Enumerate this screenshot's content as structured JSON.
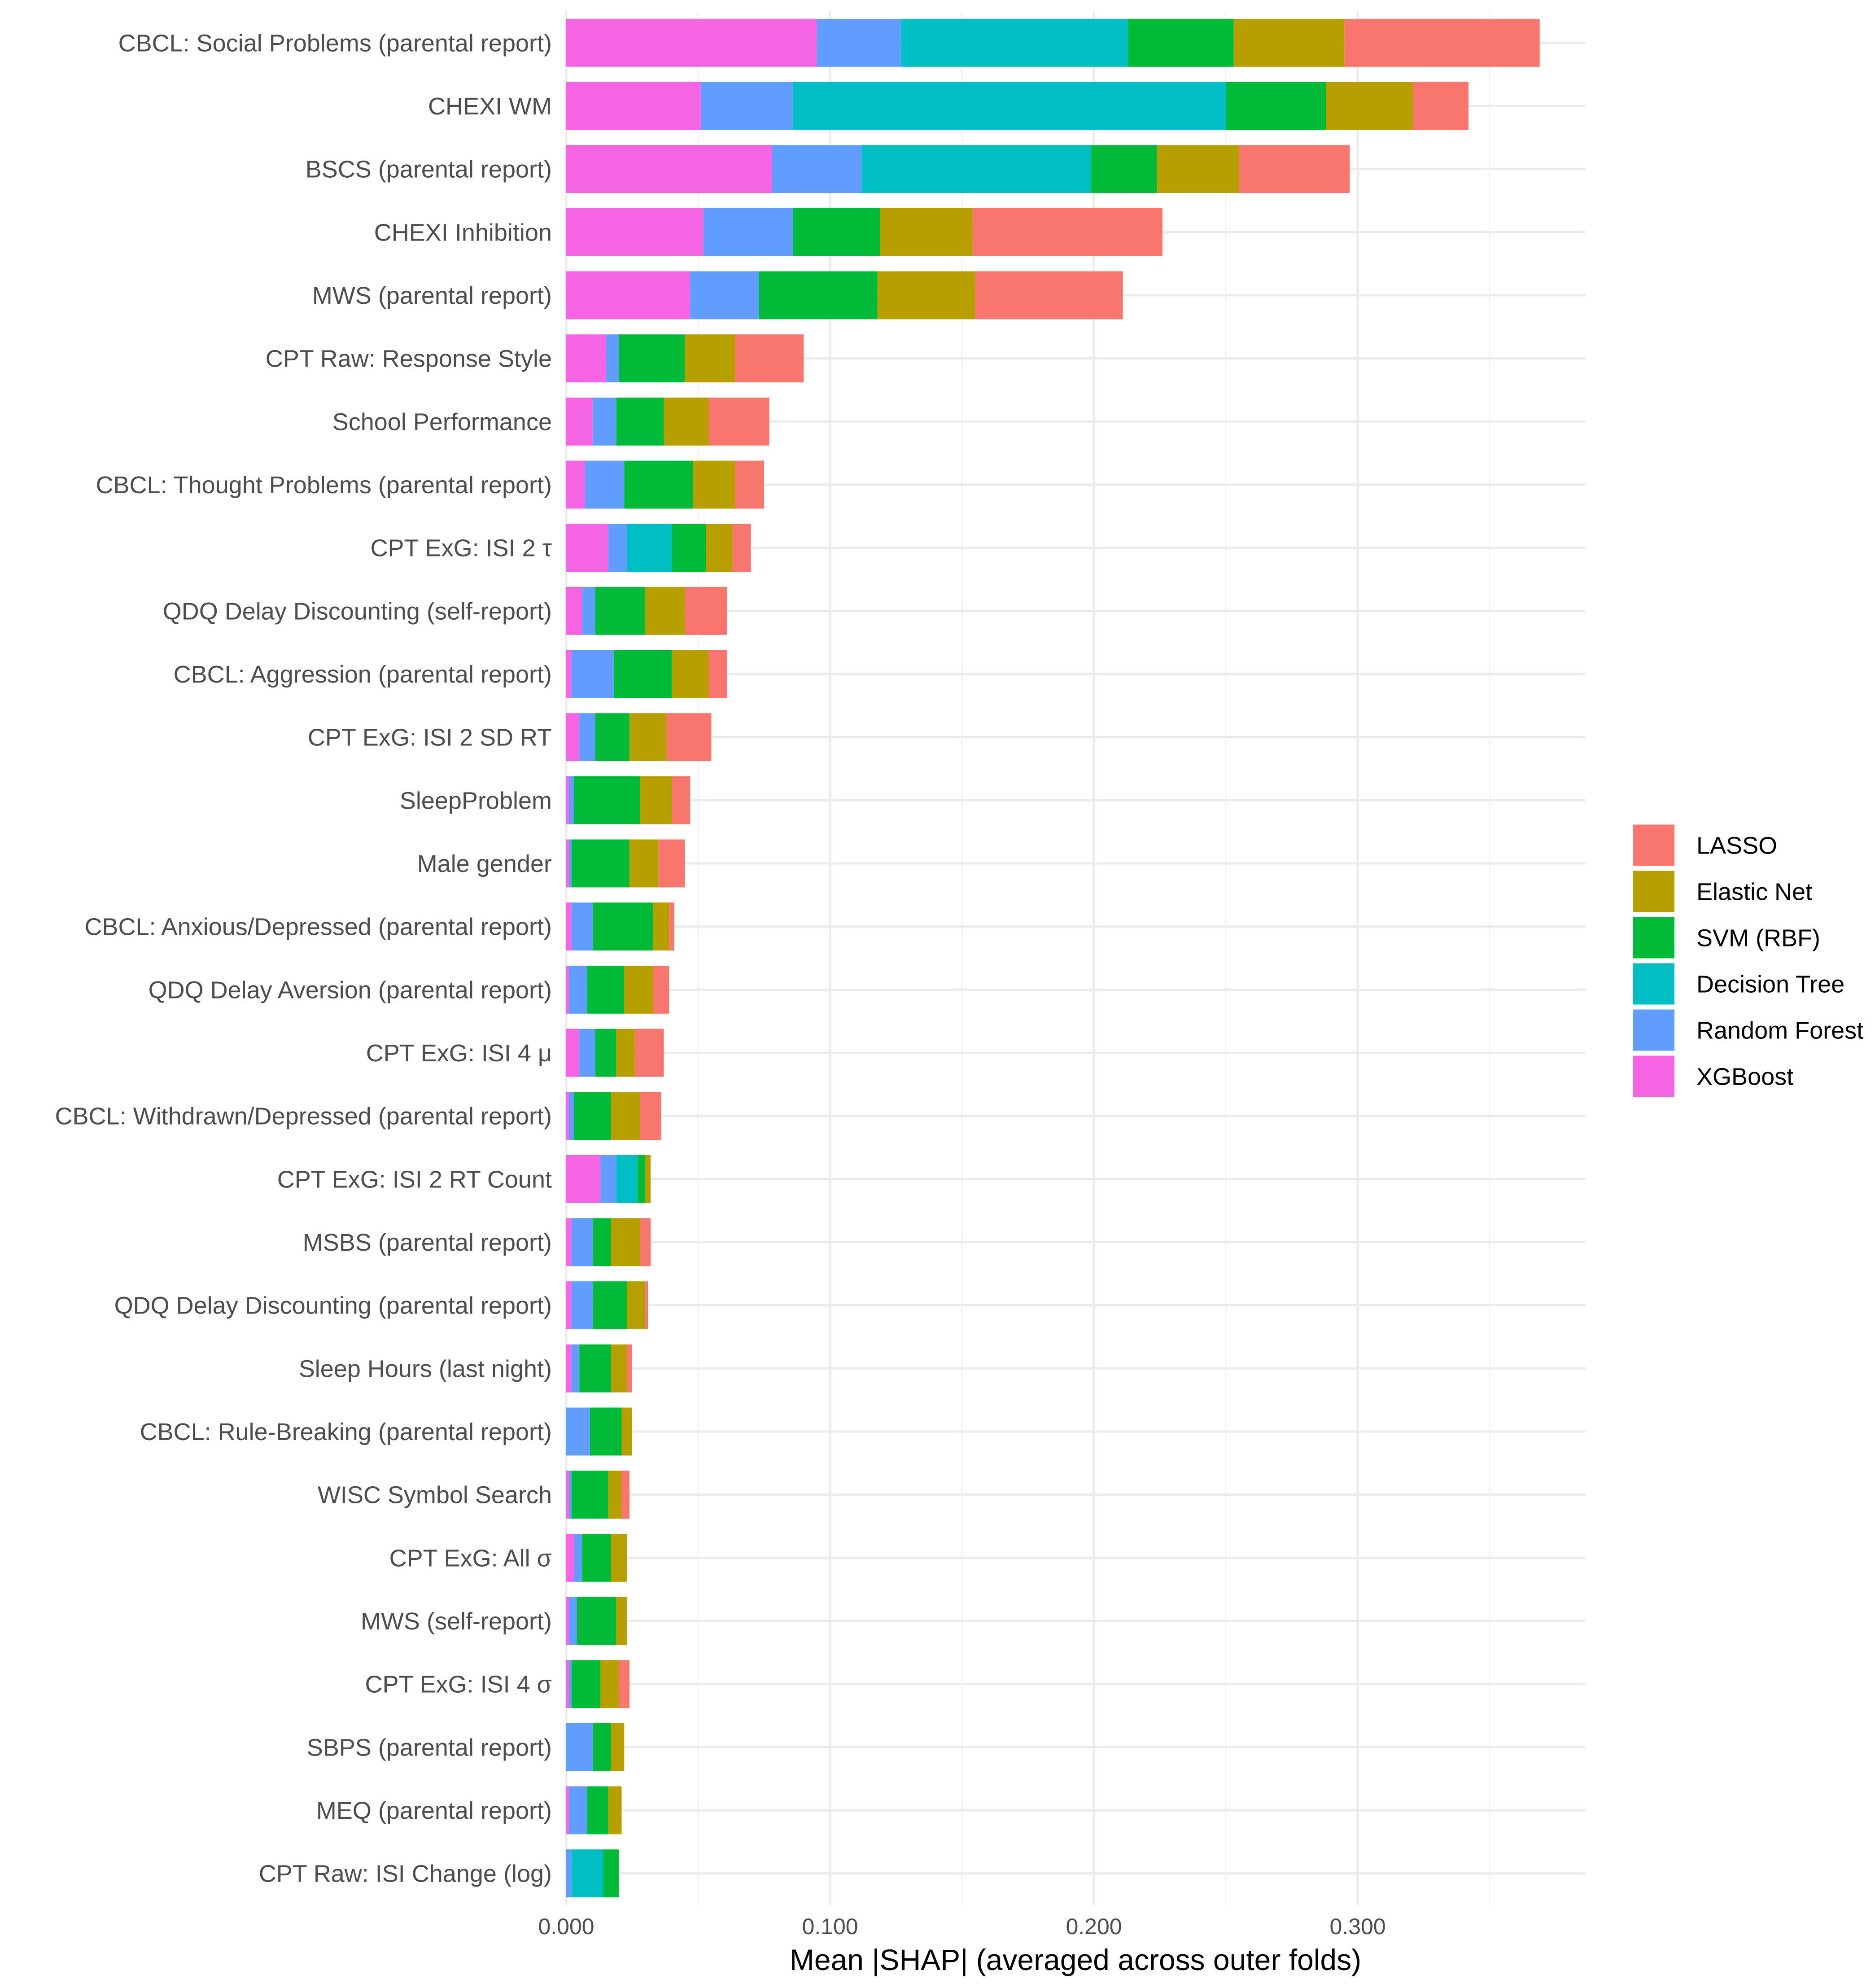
{
  "chart_data": {
    "type": "bar",
    "orientation": "horizontal",
    "stacked": true,
    "xlabel": "Mean |SHAP| (averaged across outer folds)",
    "ylabel": "",
    "xlim": [
      0,
      0.3865
    ],
    "xticks": [
      0.0,
      0.1,
      0.2,
      0.3
    ],
    "xtick_labels": [
      "0.000",
      "0.100",
      "0.200",
      "0.300"
    ],
    "grid": true,
    "legend_position": "right",
    "categories": [
      "CBCL: Social Problems (parental report)",
      "CHEXI WM",
      "BSCS (parental report)",
      "CHEXI Inhibition",
      "MWS (parental report)",
      "CPT Raw: Response Style",
      "School Performance",
      "CBCL: Thought Problems (parental report)",
      "CPT ExG: ISI 2 τ",
      "QDQ Delay Discounting (self-report)",
      "CBCL: Aggression (parental report)",
      "CPT ExG: ISI 2 SD RT",
      "SleepProblem",
      "Male gender",
      "CBCL: Anxious/Depressed (parental report)",
      "QDQ Delay Aversion (parental report)",
      "CPT ExG: ISI 4 μ",
      "CBCL: Withdrawn/Depressed (parental report)",
      "CPT ExG: ISI 2 RT Count",
      "MSBS (parental report)",
      "QDQ Delay Discounting (parental report)",
      "Sleep Hours (last night)",
      "CBCL: Rule-Breaking (parental report)",
      "WISC Symbol Search",
      "CPT ExG: All σ",
      "MWS (self-report)",
      "CPT ExG: ISI 4 σ",
      "SBPS (parental report)",
      "MEQ (parental report)",
      "CPT Raw: ISI Change (log)"
    ],
    "series": [
      {
        "name": "XGBoost",
        "color": "#F564E3",
        "values": [
          0.095,
          0.051,
          0.078,
          0.052,
          0.047,
          0.015,
          0.01,
          0.007,
          0.016,
          0.006,
          0.002,
          0.005,
          0.001,
          0.001,
          0.002,
          0.001,
          0.005,
          0.001,
          0.013,
          0.002,
          0.002,
          0.002,
          0.0,
          0.001,
          0.003,
          0.001,
          0.001,
          0.0,
          0.001,
          0.0
        ]
      },
      {
        "name": "Random Forest",
        "color": "#619CFF",
        "values": [
          0.032,
          0.035,
          0.034,
          0.034,
          0.026,
          0.005,
          0.009,
          0.015,
          0.007,
          0.005,
          0.016,
          0.006,
          0.002,
          0.001,
          0.008,
          0.007,
          0.006,
          0.002,
          0.006,
          0.008,
          0.008,
          0.003,
          0.009,
          0.001,
          0.003,
          0.003,
          0.001,
          0.01,
          0.007,
          0.002
        ]
      },
      {
        "name": "Decision Tree",
        "color": "#00BFC4",
        "values": [
          0.086,
          0.164,
          0.087,
          0.0,
          0.0,
          0.0,
          0.0,
          0.0,
          0.017,
          0.0,
          0.0,
          0.0,
          0.0,
          0.0,
          0.0,
          0.0,
          0.0,
          0.0,
          0.008,
          0.0,
          0.0,
          0.0,
          0.0,
          0.0,
          0.0,
          0.0,
          0.0,
          0.0,
          0.0,
          0.012
        ]
      },
      {
        "name": "SVM (RBF)",
        "color": "#00BA38",
        "values": [
          0.04,
          0.038,
          0.025,
          0.033,
          0.045,
          0.025,
          0.018,
          0.026,
          0.013,
          0.019,
          0.022,
          0.013,
          0.025,
          0.022,
          0.023,
          0.014,
          0.008,
          0.014,
          0.003,
          0.007,
          0.013,
          0.012,
          0.012,
          0.014,
          0.011,
          0.015,
          0.011,
          0.007,
          0.008,
          0.006
        ]
      },
      {
        "name": "Elastic Net",
        "color": "#B79F00",
        "values": [
          0.042,
          0.033,
          0.031,
          0.035,
          0.037,
          0.019,
          0.017,
          0.016,
          0.01,
          0.015,
          0.014,
          0.014,
          0.012,
          0.011,
          0.006,
          0.011,
          0.007,
          0.011,
          0.002,
          0.011,
          0.007,
          0.006,
          0.004,
          0.005,
          0.006,
          0.004,
          0.007,
          0.005,
          0.005,
          0.0
        ]
      },
      {
        "name": "LASSO",
        "color": "#F8766D",
        "values": [
          0.074,
          0.021,
          0.042,
          0.072,
          0.056,
          0.026,
          0.023,
          0.011,
          0.007,
          0.016,
          0.007,
          0.017,
          0.007,
          0.01,
          0.002,
          0.006,
          0.011,
          0.008,
          0.0,
          0.004,
          0.001,
          0.002,
          0.0,
          0.003,
          0.0,
          0.0,
          0.004,
          0.0,
          0.0,
          0.0
        ]
      }
    ],
    "legend_order": [
      "LASSO",
      "Elastic Net",
      "SVM (RBF)",
      "Decision Tree",
      "Random Forest",
      "XGBoost"
    ]
  }
}
